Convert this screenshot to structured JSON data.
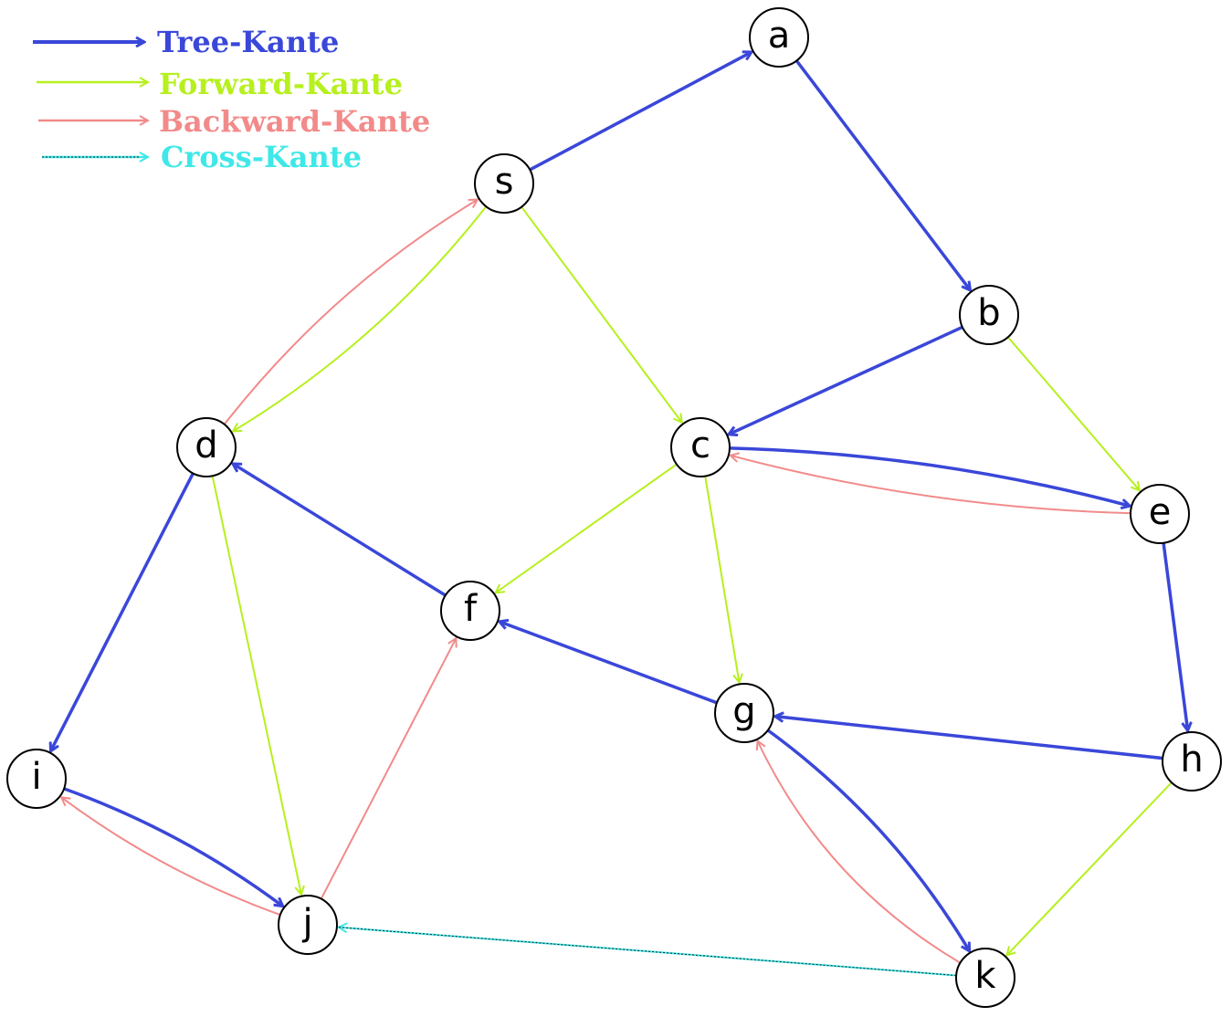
{
  "legend": {
    "tree": "Tree-Kante",
    "forward": "Forward-Kante",
    "backward": "Backward-Kante",
    "cross": "Cross-Kante"
  },
  "colors": {
    "tree": "#3a47d9",
    "forward": "#b6f01e",
    "backward": "#f28a8a",
    "cross": "#3ee8e8"
  },
  "nodes": {
    "a": "a",
    "s": "s",
    "b": "b",
    "d": "d",
    "c": "c",
    "e": "e",
    "f": "f",
    "g": "g",
    "h": "h",
    "i": "i",
    "j": "j",
    "k": "k"
  },
  "edges": [
    {
      "from": "s",
      "to": "a",
      "type": "tree"
    },
    {
      "from": "a",
      "to": "b",
      "type": "tree"
    },
    {
      "from": "b",
      "to": "c",
      "type": "tree"
    },
    {
      "from": "c",
      "to": "e",
      "type": "tree"
    },
    {
      "from": "e",
      "to": "h",
      "type": "tree"
    },
    {
      "from": "h",
      "to": "g",
      "type": "tree"
    },
    {
      "from": "g",
      "to": "f",
      "type": "tree"
    },
    {
      "from": "f",
      "to": "d",
      "type": "tree"
    },
    {
      "from": "d",
      "to": "i",
      "type": "tree"
    },
    {
      "from": "i",
      "to": "j",
      "type": "tree"
    },
    {
      "from": "g",
      "to": "k",
      "type": "tree"
    },
    {
      "from": "s",
      "to": "d",
      "type": "forward"
    },
    {
      "from": "s",
      "to": "c",
      "type": "forward"
    },
    {
      "from": "b",
      "to": "e",
      "type": "forward"
    },
    {
      "from": "c",
      "to": "f",
      "type": "forward"
    },
    {
      "from": "c",
      "to": "g",
      "type": "forward"
    },
    {
      "from": "d",
      "to": "j",
      "type": "forward"
    },
    {
      "from": "h",
      "to": "k",
      "type": "forward"
    },
    {
      "from": "d",
      "to": "s",
      "type": "backward"
    },
    {
      "from": "e",
      "to": "c",
      "type": "backward"
    },
    {
      "from": "j",
      "to": "i",
      "type": "backward"
    },
    {
      "from": "j",
      "to": "f",
      "type": "backward"
    },
    {
      "from": "k",
      "to": "g",
      "type": "backward"
    },
    {
      "from": "k",
      "to": "j",
      "type": "cross"
    }
  ]
}
